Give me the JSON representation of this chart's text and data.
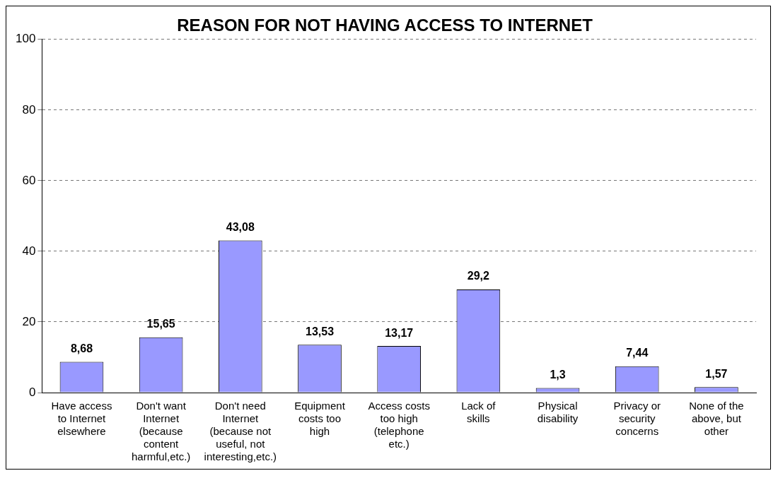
{
  "chart_data": {
    "type": "bar",
    "title": "REASON FOR NOT HAVING ACCESS TO INTERNET",
    "categories": [
      "Have access to Internet elsewhere",
      "Don't want Internet (because content harmful,etc.)",
      "Don't need Internet (because not useful, not interesting,etc.)",
      "Equipment costs too high",
      "Access costs too high (telephone etc.)",
      "Lack of skills",
      "Physical disability",
      "Privacy or security concerns",
      "None of the above, but other"
    ],
    "values": [
      8.68,
      15.65,
      43.08,
      13.53,
      13.17,
      29.2,
      1.3,
      7.44,
      1.57
    ],
    "value_labels": [
      "8,68",
      "15,65",
      "43,08",
      "13,53",
      "13,17",
      "29,2",
      "1,3",
      "7,44",
      "1,57"
    ],
    "color": "#9999ff",
    "ylim": [
      0,
      100
    ],
    "yticks": [
      0,
      20,
      40,
      60,
      80,
      100
    ],
    "grid": "y",
    "legend": false
  }
}
